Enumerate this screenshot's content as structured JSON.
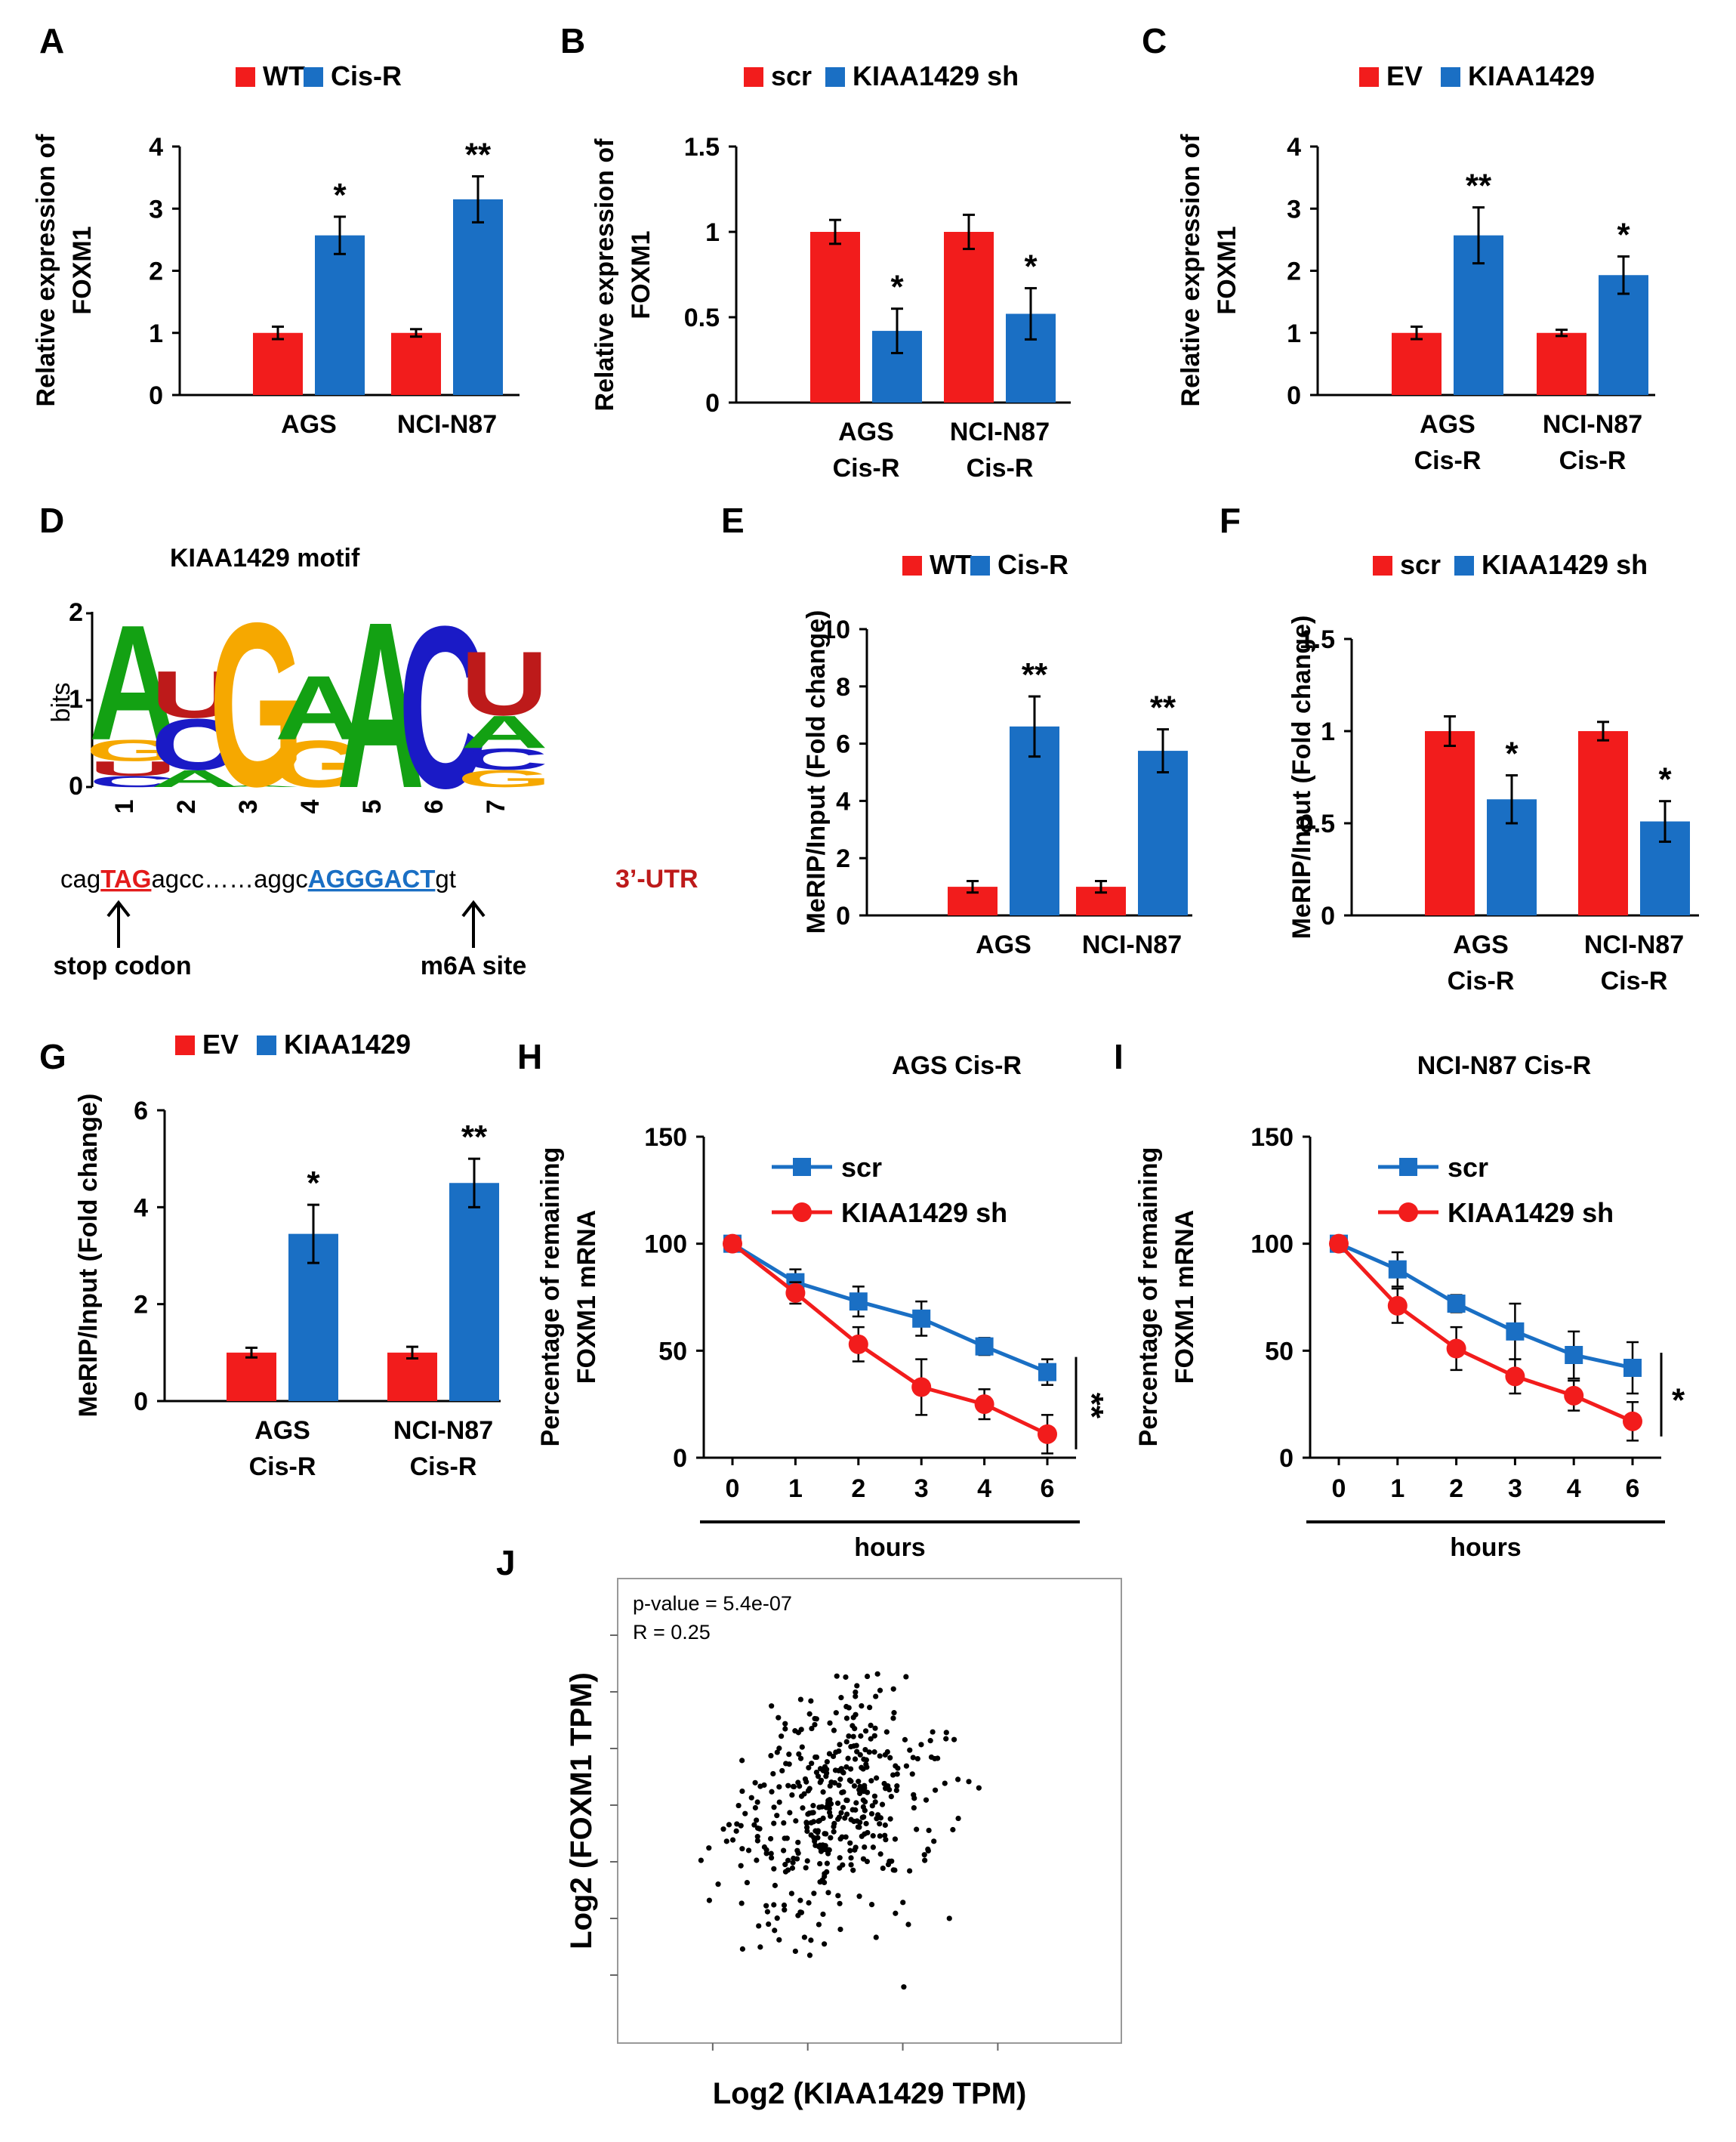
{
  "colors": {
    "red": "#f21c1c",
    "blue": "#1a6fc4",
    "green": "#13a113",
    "orange": "#f6a800",
    "darkred": "#bd1a1a",
    "navy": "#1a1ac6"
  },
  "panels": {
    "A": {
      "label": "A"
    },
    "B": {
      "label": "B"
    },
    "C": {
      "label": "C"
    },
    "D": {
      "label": "D"
    },
    "E": {
      "label": "E"
    },
    "F": {
      "label": "F"
    },
    "G": {
      "label": "G"
    },
    "H": {
      "label": "H"
    },
    "I": {
      "label": "I"
    },
    "J": {
      "label": "J"
    }
  },
  "motif": {
    "title": "KIAA1429 motif",
    "ylabel": "bits",
    "yticks": [
      "0",
      "1",
      "2"
    ],
    "positions": [
      "1",
      "2",
      "3",
      "4",
      "5",
      "6",
      "7"
    ],
    "seq": {
      "pre": "cag",
      "stop": "TAG",
      "mid": "agcc……aggc",
      "site": "AGGGACT",
      "post": "gt",
      "utr": "3’-UTR",
      "stop_label": "stop codon",
      "site_label": "m6A site"
    }
  },
  "chart_data": [
    {
      "id": "A",
      "type": "bar",
      "ylabel": [
        "Relative expression of",
        "FOXM1"
      ],
      "categories": [
        [
          "AGS"
        ],
        [
          "NCI-N87"
        ]
      ],
      "ylim": [
        0,
        4
      ],
      "yticks": [
        0,
        1,
        2,
        3,
        4
      ],
      "ytick_labels": [
        "0",
        "1",
        "2",
        "3",
        "4"
      ],
      "series": [
        {
          "name": "WT",
          "color": "#f21c1c",
          "values": [
            1.0,
            1.0
          ],
          "errors": [
            0.1,
            0.06
          ]
        },
        {
          "name": "Cis-R",
          "color": "#1a6fc4",
          "values": [
            2.57,
            3.15
          ],
          "errors": [
            0.3,
            0.37
          ]
        }
      ],
      "significance": [
        "*",
        "**"
      ]
    },
    {
      "id": "B",
      "type": "bar",
      "ylabel": [
        "Relative expression of",
        "FOXM1"
      ],
      "categories": [
        [
          "AGS",
          "Cis-R"
        ],
        [
          "NCI-N87",
          "Cis-R"
        ]
      ],
      "ylim": [
        0,
        1.5
      ],
      "yticks": [
        0,
        0.5,
        1,
        1.5
      ],
      "ytick_labels": [
        "0",
        "0.5",
        "1",
        "1.5"
      ],
      "series": [
        {
          "name": "scr",
          "color": "#f21c1c",
          "values": [
            1.0,
            1.0
          ],
          "errors": [
            0.07,
            0.1
          ]
        },
        {
          "name": "KIAA1429 sh",
          "color": "#1a6fc4",
          "values": [
            0.42,
            0.52
          ],
          "errors": [
            0.13,
            0.15
          ]
        }
      ],
      "significance": [
        "*",
        "*"
      ]
    },
    {
      "id": "C",
      "type": "bar",
      "ylabel": [
        "Relative expression of",
        "FOXM1"
      ],
      "categories": [
        [
          "AGS",
          "Cis-R"
        ],
        [
          "NCI-N87",
          "Cis-R"
        ]
      ],
      "ylim": [
        0,
        4
      ],
      "yticks": [
        0,
        1,
        2,
        3,
        4
      ],
      "ytick_labels": [
        "0",
        "1",
        "2",
        "3",
        "4"
      ],
      "series": [
        {
          "name": "EV",
          "color": "#f21c1c",
          "values": [
            1.0,
            1.0
          ],
          "errors": [
            0.1,
            0.05
          ]
        },
        {
          "name": "KIAA1429",
          "color": "#1a6fc4",
          "values": [
            2.57,
            1.93
          ],
          "errors": [
            0.45,
            0.3
          ]
        }
      ],
      "significance": [
        "**",
        "*"
      ]
    },
    {
      "id": "E",
      "type": "bar",
      "ylabel": [
        "MeRIP/Input (Fold change)"
      ],
      "categories": [
        [
          "AGS"
        ],
        [
          "NCI-N87"
        ]
      ],
      "ylim": [
        0,
        10
      ],
      "yticks": [
        0,
        2,
        4,
        6,
        8,
        10
      ],
      "ytick_labels": [
        "0",
        "2",
        "4",
        "6",
        "8",
        "10"
      ],
      "series": [
        {
          "name": "WT",
          "color": "#f21c1c",
          "values": [
            1.0,
            1.0
          ],
          "errors": [
            0.2,
            0.2
          ]
        },
        {
          "name": "Cis-R",
          "color": "#1a6fc4",
          "values": [
            6.6,
            5.75
          ],
          "errors": [
            1.05,
            0.75
          ]
        }
      ],
      "significance": [
        "**",
        "**"
      ]
    },
    {
      "id": "F",
      "type": "bar",
      "ylabel": [
        "MeRIP/Input (Fold change)"
      ],
      "categories": [
        [
          "AGS",
          "Cis-R"
        ],
        [
          "NCI-N87",
          "Cis-R"
        ]
      ],
      "ylim": [
        0,
        1.5
      ],
      "yticks": [
        0,
        0.5,
        1,
        1.5
      ],
      "ytick_labels": [
        "0",
        "0.5",
        "1",
        "1.5"
      ],
      "series": [
        {
          "name": "scr",
          "color": "#f21c1c",
          "values": [
            1.0,
            1.0
          ],
          "errors": [
            0.08,
            0.05
          ]
        },
        {
          "name": "KIAA1429 sh",
          "color": "#1a6fc4",
          "values": [
            0.63,
            0.51
          ],
          "errors": [
            0.13,
            0.11
          ]
        }
      ],
      "significance": [
        "*",
        "*"
      ]
    },
    {
      "id": "G",
      "type": "bar",
      "ylabel": [
        "MeRIP/Input (Fold change)"
      ],
      "categories": [
        [
          "AGS",
          "Cis-R"
        ],
        [
          "NCI-N87",
          "Cis-R"
        ]
      ],
      "ylim": [
        0,
        6
      ],
      "yticks": [
        0,
        2,
        4,
        6
      ],
      "ytick_labels": [
        "0",
        "2",
        "4",
        "6"
      ],
      "series": [
        {
          "name": "EV",
          "color": "#f21c1c",
          "values": [
            1.0,
            1.0
          ],
          "errors": [
            0.1,
            0.12
          ]
        },
        {
          "name": "KIAA1429",
          "color": "#1a6fc4",
          "values": [
            3.45,
            4.5
          ],
          "errors": [
            0.6,
            0.5
          ]
        }
      ],
      "significance": [
        "*",
        "**"
      ]
    },
    {
      "id": "H",
      "type": "line",
      "title": "AGS Cis-R",
      "ylabel": [
        "Percentage of remaining",
        "FOXM1 mRNA"
      ],
      "xlabel": "hours",
      "x_labels": [
        "0",
        "1",
        "2",
        "3",
        "4",
        "6"
      ],
      "ylim": [
        0,
        150
      ],
      "yticks": [
        0,
        50,
        100,
        150
      ],
      "ytick_labels": [
        "0",
        "50",
        "100",
        "150"
      ],
      "series": [
        {
          "name": "scr",
          "color": "#1a6fc4",
          "marker": "square",
          "values": [
            100,
            82,
            73,
            65,
            52,
            40
          ],
          "errors": [
            3,
            6,
            7,
            8,
            4,
            6
          ]
        },
        {
          "name": "KIAA1429 sh",
          "color": "#f21c1c",
          "marker": "circle",
          "values": [
            100,
            77,
            53,
            33,
            25,
            11
          ],
          "errors": [
            3,
            5,
            8,
            13,
            7,
            9
          ]
        }
      ],
      "significance": "**"
    },
    {
      "id": "I",
      "type": "line",
      "title": "NCI-N87 Cis-R",
      "ylabel": [
        "Percentage of remaining",
        "FOXM1 mRNA"
      ],
      "xlabel": "hours",
      "x_labels": [
        "0",
        "1",
        "2",
        "3",
        "4",
        "6"
      ],
      "ylim": [
        0,
        150
      ],
      "yticks": [
        0,
        50,
        100,
        150
      ],
      "ytick_labels": [
        "0",
        "50",
        "100",
        "150"
      ],
      "series": [
        {
          "name": "scr",
          "color": "#1a6fc4",
          "marker": "square",
          "values": [
            100,
            88,
            72,
            59,
            48,
            42
          ],
          "errors": [
            3,
            8,
            4,
            13,
            11,
            12
          ]
        },
        {
          "name": "KIAA1429 sh",
          "color": "#f21c1c",
          "marker": "circle",
          "values": [
            100,
            71,
            51,
            38,
            29,
            17
          ],
          "errors": [
            3,
            8,
            10,
            8,
            7,
            9
          ]
        }
      ],
      "significance": "*"
    },
    {
      "id": "J",
      "type": "scatter",
      "xlabel": "Log2 (KIAA1429 TPM)",
      "ylabel": "Log2 (FOXM1 TPM)",
      "annotations": [
        "p-value = 5.4e-07",
        "R = 0.25"
      ],
      "n_points": 420,
      "r": 0.25,
      "ylim": [
        -3,
        3
      ],
      "x_ticks": 4,
      "y_ticks": 7,
      "seed": 7
    }
  ]
}
